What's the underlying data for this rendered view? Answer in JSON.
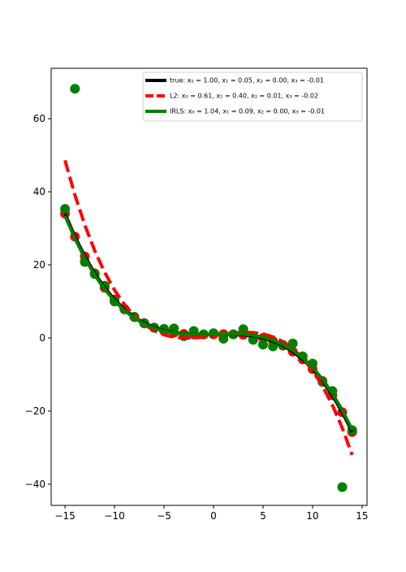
{
  "chart_data": {
    "type": "line",
    "x": [
      -15,
      -14,
      -13,
      -12,
      -11,
      -10,
      -9,
      -8,
      -7,
      -6,
      -5,
      -4,
      -3,
      -2,
      -1,
      0,
      1,
      2,
      3,
      4,
      5,
      6,
      7,
      8,
      9,
      10,
      11,
      12,
      13,
      14
    ],
    "scatter": [
      {
        "color": "#ff0000",
        "values": [
          34.0,
          27.74,
          22.32,
          17.68,
          13.76,
          10.5,
          7.84,
          5.72,
          4.08,
          2.86,
          2.0,
          1.44,
          1.12,
          0.98,
          0.96,
          1.0,
          1.04,
          1.02,
          0.88,
          0.56,
          0.0,
          -0.86,
          -2.08,
          -3.72,
          -5.84,
          -8.5,
          -11.76,
          -15.68,
          -20.32,
          -25.74
        ]
      },
      {
        "color": "#008000",
        "values": [
          35.3,
          68.2,
          20.8,
          17.5,
          14.3,
          10,
          8,
          5.8,
          4,
          2.8,
          2.5,
          2.6,
          0.5,
          1.9,
          1.0,
          1.3,
          -0.2,
          1.0,
          2.4,
          -0.5,
          -1.8,
          -2.3,
          -1.9,
          -1.5,
          -5,
          -7,
          -12,
          -14.5,
          -40.8,
          -25.2
        ]
      }
    ],
    "series": [
      {
        "name": "true: x₀ = 1.00, x₁ = 0.05, x₂ = 0.00, x₃ = -0.01",
        "color": "#000000",
        "dash": false,
        "values": [
          34.0,
          27.74,
          22.32,
          17.68,
          13.76,
          10.5,
          7.84,
          5.72,
          4.08,
          2.86,
          2.0,
          1.44,
          1.12,
          0.98,
          0.96,
          1.0,
          1.04,
          1.02,
          0.88,
          0.56,
          0.0,
          -0.86,
          -2.08,
          -3.72,
          -5.84,
          -8.5,
          -11.76,
          -15.68,
          -20.32,
          -25.74
        ]
      },
      {
        "name": "L2: x₀ = 0.61, x₁ = 0.40, x₂ = 0.01, x₃ = -0.02",
        "color": "#ff0000",
        "dash": true,
        "values": [
          48.61,
          39.11,
          30.9,
          23.89,
          17.99,
          13.11,
          9.16,
          6.05,
          3.69,
          1.99,
          0.86,
          0.21,
          -0.05,
          -0.01,
          0.24,
          0.61,
          1.01,
          1.35,
          1.54,
          1.49,
          1.11,
          0.31,
          -1.0,
          -2.91,
          -5.51,
          -8.89,
          -13.14,
          -18.35,
          -24.61,
          -32.01
        ]
      },
      {
        "name": "IRLS: x₀ = 1.04, x₁ = 0.09, x₂ = 0.00, x₃ = -0.01",
        "color": "#008000",
        "dash": false,
        "values": [
          33.44,
          27.22,
          21.84,
          17.24,
          13.36,
          10.14,
          7.52,
          5.44,
          3.84,
          2.66,
          1.84,
          1.32,
          1.04,
          0.94,
          0.96,
          1.04,
          1.12,
          1.14,
          1.04,
          0.76,
          0.24,
          -0.58,
          -1.76,
          -3.36,
          -5.44,
          -8.06,
          -11.28,
          -15.16,
          -19.76,
          -25.14
        ]
      }
    ],
    "xlim": [
      -16.4,
      15.5
    ],
    "ylim": [
      -45.8,
      73.8
    ],
    "xticks": [
      {
        "value": -15,
        "label": "−15"
      },
      {
        "value": -10,
        "label": "−10"
      },
      {
        "value": -5,
        "label": "−5"
      },
      0,
      5,
      10,
      15
    ],
    "yticks": [
      {
        "value": -40,
        "label": "−40"
      },
      {
        "value": -20,
        "label": "−20"
      },
      0,
      20,
      40,
      60
    ],
    "legend": "upper right",
    "grid": false
  }
}
